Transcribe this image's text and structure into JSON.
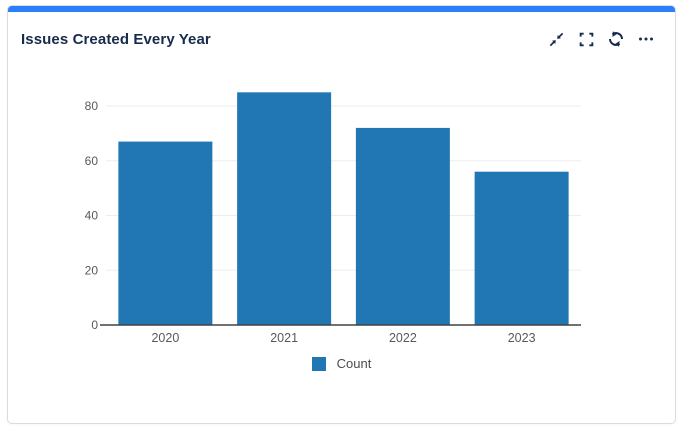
{
  "panel": {
    "title": "Issues Created Every Year",
    "accent_color": "#2d7ff9",
    "toolbar": {
      "collapse": "collapse-icon",
      "fullscreen": "fullscreen-icon",
      "refresh": "refresh-icon",
      "more": "ellipsis-icon"
    }
  },
  "chart_data": {
    "type": "bar",
    "title": "Issues Created Every Year",
    "categories": [
      "2020",
      "2021",
      "2022",
      "2023"
    ],
    "series": [
      {
        "name": "Count",
        "values": [
          67,
          85,
          72,
          56
        ]
      }
    ],
    "xlabel": "",
    "ylabel": "",
    "ylim": [
      0,
      88
    ],
    "yticks": [
      0,
      20,
      40,
      60,
      80
    ],
    "grid": true,
    "legend_position": "bottom",
    "bar_color": "#2077b4",
    "colors": {
      "grid": "#ededed",
      "axis": "#424242",
      "tick_label": "#595959"
    }
  }
}
